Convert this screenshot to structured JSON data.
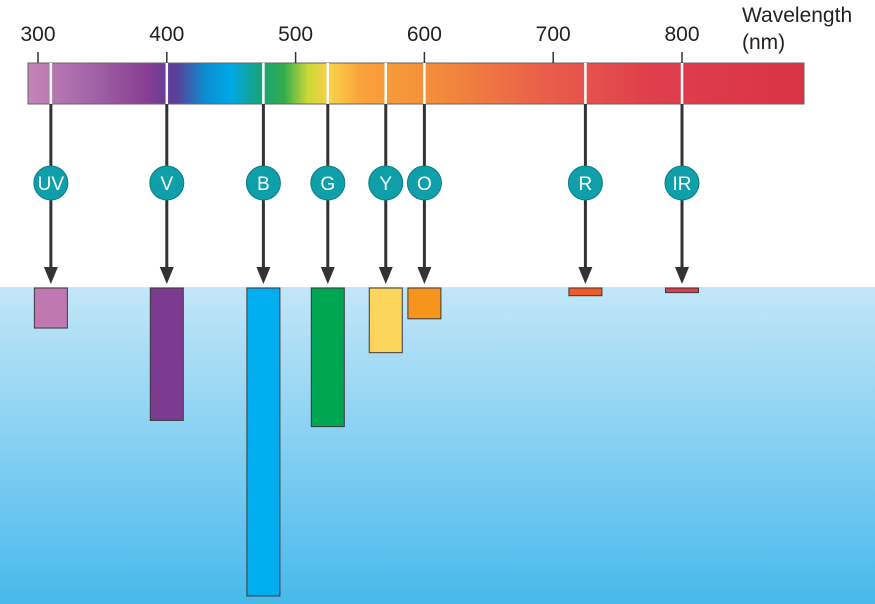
{
  "axis": {
    "title_line1": "Wavelength",
    "title_line2": "(nm)",
    "min": 300,
    "max": 800,
    "ticks": [
      300,
      400,
      500,
      600,
      700,
      800
    ],
    "tick_labels": [
      "300",
      "400",
      "500",
      "600",
      "700",
      "800"
    ]
  },
  "chart_data": {
    "type": "bar",
    "xlabel": "Wavelength (nm)",
    "categories": [
      "UV",
      "V",
      "B",
      "G",
      "Y",
      "O",
      "R",
      "IR"
    ],
    "wavelengths_nm": [
      310,
      400,
      475,
      525,
      570,
      600,
      725,
      800
    ],
    "values": [
      0.13,
      0.43,
      1.0,
      0.45,
      0.21,
      0.1,
      0.025,
      0.015
    ],
    "series": [
      {
        "values": [
          0.13,
          0.43,
          1.0,
          0.45,
          0.21,
          0.1,
          0.025,
          0.015
        ]
      }
    ]
  },
  "bands": [
    {
      "label": "UV",
      "nm": 310,
      "depth": 0.13,
      "color": "#c078b3"
    },
    {
      "label": "V",
      "nm": 400,
      "depth": 0.43,
      "color": "#7d3a91"
    },
    {
      "label": "B",
      "nm": 475,
      "depth": 1.0,
      "color": "#00adef"
    },
    {
      "label": "G",
      "nm": 525,
      "depth": 0.45,
      "color": "#00a651"
    },
    {
      "label": "Y",
      "nm": 570,
      "depth": 0.21,
      "color": "#fdd55c"
    },
    {
      "label": "O",
      "nm": 600,
      "depth": 0.1,
      "color": "#f7941d"
    },
    {
      "label": "R",
      "nm": 725,
      "depth": 0.025,
      "color": "#f15a29"
    },
    {
      "label": "IR",
      "nm": 800,
      "depth": 0.015,
      "color": "#e03a4e"
    }
  ],
  "colors": {
    "badge": "#0f9fa8",
    "arrow": "#333333",
    "water_top": "#c3e6f8",
    "water_bottom": "#47b9ec"
  }
}
